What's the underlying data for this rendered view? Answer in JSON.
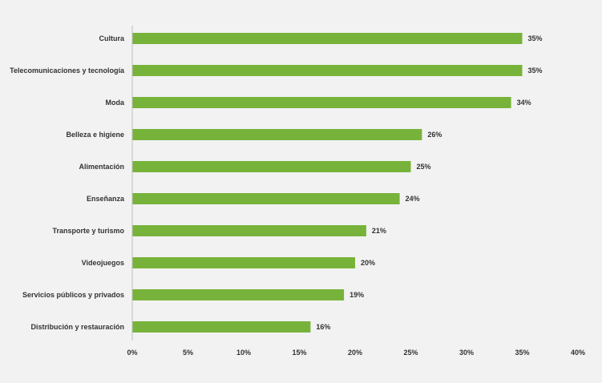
{
  "chart_data": {
    "type": "bar",
    "orientation": "horizontal",
    "categories": [
      "Cultura",
      "Telecomunicaciones y tecnología",
      "Moda",
      "Belleza e higiene",
      "Alimentación",
      "Enseñanza",
      "Transporte y turismo",
      "Videojuegos",
      "Servicios públicos y privados",
      "Distribución y restauración"
    ],
    "values": [
      35,
      35,
      34,
      26,
      25,
      24,
      21,
      20,
      19,
      16
    ],
    "data_labels": [
      "35%",
      "35%",
      "34%",
      "26%",
      "25%",
      "24%",
      "21%",
      "20%",
      "19%",
      "16%"
    ],
    "xlim": [
      0,
      40
    ],
    "x_ticks": [
      0,
      5,
      10,
      15,
      20,
      25,
      30,
      35,
      40
    ],
    "x_tick_labels": [
      "0%",
      "5%",
      "10%",
      "15%",
      "20%",
      "25%",
      "30%",
      "35%",
      "40%"
    ],
    "title": "",
    "xlabel": "",
    "ylabel": "",
    "grid": false,
    "legend": "none",
    "colors": {
      "bar": "#77b33a",
      "background": "#f2f2f2",
      "axis": "#bfbfbf",
      "text": "#333333"
    }
  }
}
